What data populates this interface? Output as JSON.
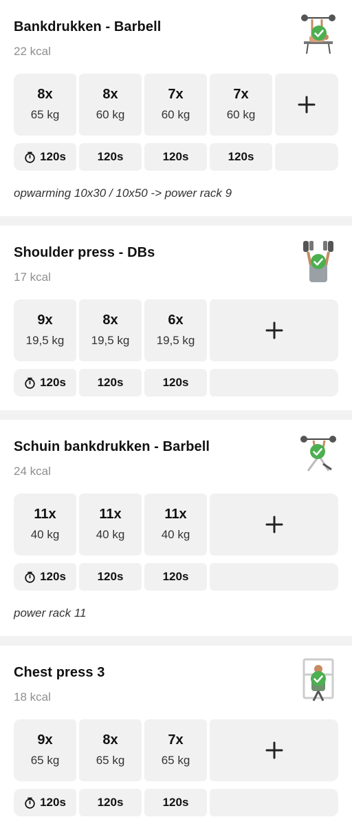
{
  "exercises": [
    {
      "title": "Bankdrukken - Barbell",
      "kcal": "22 kcal",
      "thumbnail_icon": "bench-press-figure-icon",
      "completed": true,
      "sets": [
        {
          "reps": "8x",
          "weight": "65 kg"
        },
        {
          "reps": "8x",
          "weight": "60 kg"
        },
        {
          "reps": "7x",
          "weight": "60 kg"
        },
        {
          "reps": "7x",
          "weight": "60 kg"
        }
      ],
      "rests": [
        "120s",
        "120s",
        "120s",
        "120s"
      ],
      "note": "opwarming 10x30 / 10x50 -> power rack 9"
    },
    {
      "title": "Shoulder press - DBs",
      "kcal": "17 kcal",
      "thumbnail_icon": "shoulder-press-figure-icon",
      "completed": true,
      "sets": [
        {
          "reps": "9x",
          "weight": "19,5 kg"
        },
        {
          "reps": "8x",
          "weight": "19,5 kg"
        },
        {
          "reps": "6x",
          "weight": "19,5 kg"
        }
      ],
      "rests": [
        "120s",
        "120s",
        "120s"
      ],
      "note": ""
    },
    {
      "title": "Schuin bankdrukken - Barbell",
      "kcal": "24 kcal",
      "thumbnail_icon": "incline-bench-figure-icon",
      "completed": true,
      "sets": [
        {
          "reps": "11x",
          "weight": "40 kg"
        },
        {
          "reps": "11x",
          "weight": "40 kg"
        },
        {
          "reps": "11x",
          "weight": "40 kg"
        }
      ],
      "rests": [
        "120s",
        "120s",
        "120s"
      ],
      "note": "power rack 11"
    },
    {
      "title": "Chest press 3",
      "kcal": "18 kcal",
      "thumbnail_icon": "chest-press-machine-figure-icon",
      "completed": true,
      "sets": [
        {
          "reps": "9x",
          "weight": "65 kg"
        },
        {
          "reps": "8x",
          "weight": "65 kg"
        },
        {
          "reps": "7x",
          "weight": "65 kg"
        }
      ],
      "rests": [
        "120s",
        "120s",
        "120s"
      ],
      "note": ""
    }
  ],
  "colors": {
    "background": "#f2f2f2",
    "card": "#ffffff",
    "tile": "#f1f1f1",
    "check": "#4caf50",
    "muted_text": "#8e8e8e"
  }
}
